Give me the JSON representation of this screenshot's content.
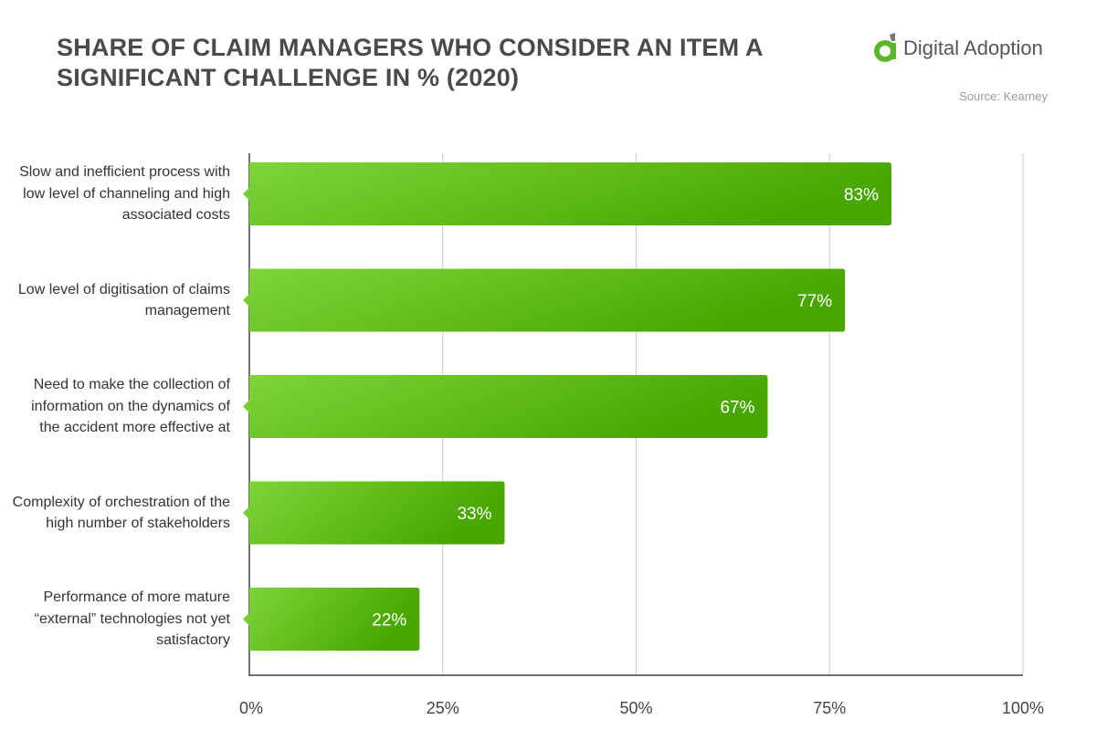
{
  "title": "SHARE OF CLAIM MANAGERS WHO CONSIDER AN ITEM A SIGNIFICANT CHALLENGE IN % (2020)",
  "logo": {
    "text": "Digital Adoption",
    "icon": "digital-adoption-logo",
    "color": "#5cb82a"
  },
  "source": "Source: Kearney",
  "chart_data": {
    "type": "bar",
    "orientation": "horizontal",
    "categories": [
      "Slow and inefficient process with low level of channeling and high associated costs",
      "Low level of digitisation of claims management",
      "Need to make the collection of information on the dynamics of the accident more effective at",
      "Complexity of orchestration of the high number of stakeholders",
      "Performance of more mature “external” technologies not yet satisfactory"
    ],
    "values": [
      83,
      77,
      67,
      33,
      22
    ],
    "data_labels": [
      "83%",
      "77%",
      "67%",
      "33%",
      "22%"
    ],
    "xlim": [
      0,
      100
    ],
    "xticks": [
      "0%",
      "25%",
      "50%",
      "75%",
      "100%"
    ],
    "grid": "vertical",
    "colors": {
      "bar_start": "#7ed63a",
      "bar_end": "#48a600",
      "grid": "#cccccc",
      "axis": "#444444"
    }
  }
}
